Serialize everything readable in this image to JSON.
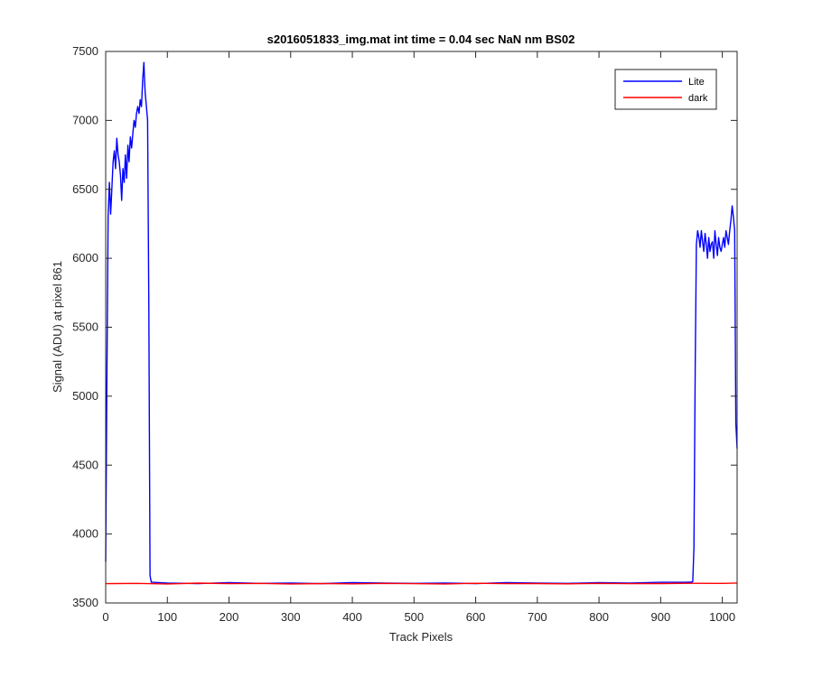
{
  "chart_data": {
    "type": "line",
    "title": "s2016051833_img.mat int time = 0.04 sec  NaN nm BS02",
    "xlabel": "Track Pixels",
    "ylabel": "Signal (ADU) at pixel 861",
    "xlim": [
      0,
      1024
    ],
    "ylim": [
      3500,
      7500
    ],
    "xticks": [
      0,
      100,
      200,
      300,
      400,
      500,
      600,
      700,
      800,
      900,
      1000
    ],
    "yticks": [
      3500,
      4000,
      4500,
      5000,
      5500,
      6000,
      6500,
      7000,
      7500
    ],
    "legend_position": "top-right",
    "series": [
      {
        "name": "Lite",
        "color": "#0000ff",
        "x": [
          0,
          2,
          4,
          6,
          8,
          10,
          12,
          14,
          16,
          18,
          20,
          22,
          24,
          26,
          28,
          30,
          32,
          34,
          36,
          38,
          40,
          42,
          44,
          46,
          48,
          50,
          52,
          54,
          56,
          58,
          60,
          62,
          63,
          64,
          66,
          68,
          70,
          72,
          74,
          76,
          100,
          150,
          200,
          250,
          300,
          350,
          400,
          450,
          500,
          550,
          600,
          650,
          700,
          750,
          800,
          850,
          900,
          940,
          950,
          952,
          954,
          956,
          958,
          960,
          962,
          964,
          966,
          968,
          970,
          972,
          974,
          976,
          978,
          980,
          982,
          984,
          986,
          988,
          990,
          992,
          994,
          996,
          998,
          1000,
          1002,
          1004,
          1006,
          1008,
          1010,
          1012,
          1014,
          1016,
          1018,
          1020,
          1022,
          1024
        ],
        "y": [
          3800,
          5200,
          6300,
          6550,
          6320,
          6500,
          6700,
          6780,
          6650,
          6870,
          6750,
          6700,
          6600,
          6420,
          6650,
          6550,
          6750,
          6580,
          6820,
          6700,
          6880,
          6800,
          6900,
          7000,
          6950,
          7050,
          7100,
          7050,
          7150,
          7100,
          7300,
          7420,
          7300,
          7200,
          7100,
          7000,
          5600,
          3700,
          3650,
          3650,
          3645,
          3640,
          3648,
          3642,
          3645,
          3640,
          3648,
          3645,
          3642,
          3645,
          3640,
          3648,
          3645,
          3642,
          3648,
          3645,
          3650,
          3650,
          3652,
          3655,
          3900,
          5200,
          6100,
          6200,
          6150,
          6080,
          6200,
          6120,
          6050,
          6180,
          6100,
          6000,
          6150,
          6050,
          6100,
          6120,
          6000,
          6200,
          6100,
          6020,
          6150,
          6080,
          6050,
          6100,
          6150,
          6080,
          6200,
          6150,
          6100,
          6200,
          6280,
          6380,
          6300,
          6200,
          4800,
          4620
        ]
      },
      {
        "name": "dark",
        "color": "#ff0000",
        "x": [
          0,
          50,
          100,
          150,
          200,
          250,
          300,
          350,
          400,
          450,
          500,
          550,
          600,
          650,
          700,
          750,
          800,
          850,
          900,
          950,
          1000,
          1024
        ],
        "y": [
          3640,
          3642,
          3638,
          3644,
          3640,
          3642,
          3638,
          3641,
          3639,
          3642,
          3640,
          3638,
          3643,
          3640,
          3641,
          3639,
          3642,
          3640,
          3641,
          3643,
          3642,
          3645
        ]
      }
    ]
  }
}
